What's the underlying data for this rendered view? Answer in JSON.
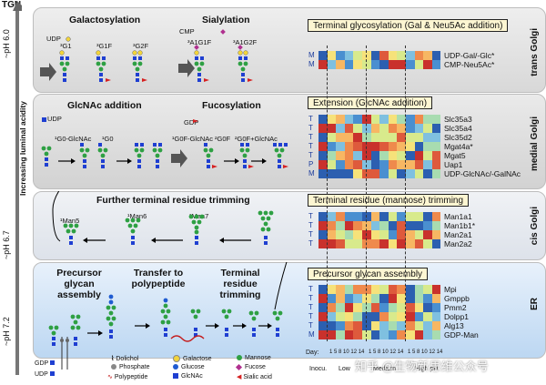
{
  "tgn": "TGN",
  "ph": {
    "trans": "~pH 6.0",
    "cis": "~pH 6.7",
    "er": "~pH 7.2"
  },
  "axis_label": "Increasing luminal acidity",
  "compartments": {
    "trans": "trans Golgi",
    "medial": "medial Golgi",
    "cis": "cis Golgi",
    "er": "ER"
  },
  "trans": {
    "galactosylation": "Galactosylation",
    "sialylation": "Sialylation",
    "udp": "UDP",
    "cmp": "CMP",
    "g1": "³G1",
    "g1f": "³G1F",
    "g2f": "³G2F",
    "a1g1f": "³A1G1F",
    "a1g2f": "³A1G2F",
    "box": "Terminal glycosylation (Gal & Neu5Ac addition)",
    "letters": [
      "M",
      "M"
    ],
    "genes": [
      "UDP-Gal/-Glc*",
      "CMP-Neu5Ac*"
    ]
  },
  "medial": {
    "glcnac_addition": "GlcNAc addition",
    "fucosylation": "Fucosylation",
    "udp": "UDP",
    "gdp": "GDP",
    "g0glcnac": "¹G0-GlcNAc",
    "g0": "¹G0",
    "g0fglcnac": "¹G0F-GlcNAc",
    "g0f": "²G0F",
    "g0fplus": "²G0F+GlcNAc",
    "box": "Extension (GlcNAc addition)",
    "letters": [
      "T",
      "T",
      "T",
      "T",
      "T",
      "P",
      "M"
    ],
    "genes": [
      "Slc35a3",
      "Slc35a4",
      "Slc35d2",
      "Mgat4a*",
      "Mgat5",
      "Uap1",
      "UDP-GlcNAc/-GalNAc"
    ]
  },
  "cis": {
    "title": "Further terminal residue trimming",
    "man5": "¹Man5",
    "man6": "¹Man6",
    "man7": "¹Man7",
    "box": "Terminal residue (mannose) trimming",
    "letters": [
      "T",
      "T",
      "T",
      "T"
    ],
    "genes": [
      "Man1a1",
      "Man1b1*",
      "Man2a1",
      "Man2a2"
    ]
  },
  "er": {
    "precursor": "Precursor glycan assembly",
    "transfer": "Transfer to polypeptide",
    "trimming": "Terminal residue trimming",
    "box": "Precursor glycan assembly",
    "letters": [
      "T",
      "T",
      "T",
      "T",
      "T",
      "M"
    ],
    "genes": [
      "Mpi",
      "Gmppb",
      "Pmm2",
      "Dolpp1",
      "Alg13",
      "GDP-Man"
    ]
  },
  "legend": {
    "gdp": "GDP",
    "udp": "UDP",
    "dolichol": "Dolichol",
    "phosphate": "Phosphate",
    "polypeptide": "Polypeptide",
    "galactose": "Galactose",
    "glucose": "Glucose",
    "glcnac": "GlcNAc",
    "mannose": "Mannose",
    "fucose": "Fucose",
    "sialic": "Sialic acid"
  },
  "bottom": {
    "day": "Day:",
    "days": "1 5 8 10 12 14",
    "inocu": "Inocu.",
    "low": "Low",
    "medium": "Medium",
    "high": "High pH"
  },
  "watermark": "知乎 @生物新思维公众号",
  "colors": {
    "mannose": "#2ea043",
    "glcnac": "#1f3fd1",
    "galactose": "#f2d43a",
    "fucose": "#d62020",
    "sialic": "#b0308f",
    "glucose": "#1f5bd1"
  }
}
